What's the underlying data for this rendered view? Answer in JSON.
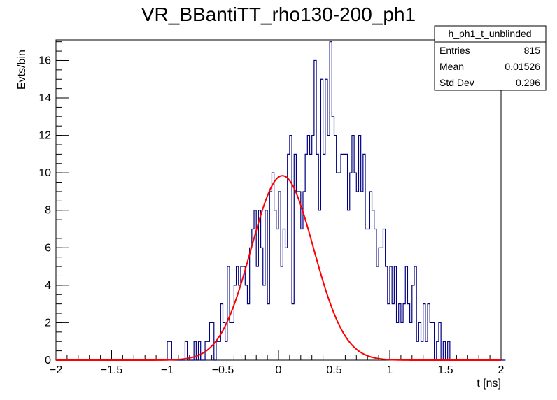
{
  "chart_data": {
    "type": "histogram",
    "title": "VR_BBantiTT_rho130-200_ph1",
    "xlabel": "t [ns]",
    "ylabel": "Evts/bin",
    "xlim": [
      -2,
      2
    ],
    "ylim": [
      0,
      17.1
    ],
    "x_ticks": [
      -2,
      -1.5,
      -1,
      -0.5,
      0,
      0.5,
      1,
      1.5,
      2
    ],
    "x_tick_labels": [
      "−2",
      "−1.5",
      "−1",
      "−0.5",
      "0",
      "0.5",
      "1",
      "1.5",
      "2"
    ],
    "y_ticks": [
      0,
      2,
      4,
      6,
      8,
      10,
      12,
      14,
      16
    ],
    "y_tick_labels": [
      "0",
      "2",
      "4",
      "6",
      "8",
      "10",
      "12",
      "14",
      "16"
    ],
    "bins": {
      "start": -2.0,
      "width": 0.02,
      "counts": [
        0,
        0,
        0,
        0,
        0,
        0,
        0,
        0,
        0,
        0,
        0,
        0,
        0,
        0,
        0,
        0,
        0,
        0,
        0,
        0,
        0,
        0,
        0,
        0,
        0,
        0,
        0,
        0,
        0,
        0,
        0,
        0,
        0,
        0,
        0,
        0,
        0,
        0,
        0,
        0,
        0,
        0,
        0,
        0,
        0,
        0,
        0,
        0,
        0,
        0,
        1,
        1,
        0,
        0,
        0,
        0,
        0,
        0,
        1,
        0,
        0,
        0,
        1,
        0,
        1,
        0,
        0,
        1,
        1,
        2,
        2,
        0,
        1,
        1,
        3,
        2,
        1,
        5,
        2,
        2,
        4,
        5,
        4,
        5,
        5,
        4,
        3,
        6,
        7,
        8,
        5,
        8,
        6,
        4,
        8,
        3,
        9,
        10,
        8,
        7,
        9,
        5,
        7,
        6,
        11,
        12,
        3,
        11,
        9,
        9,
        7,
        9,
        11,
        12,
        11,
        12,
        16,
        11,
        8,
        15,
        11,
        15,
        12,
        17,
        13,
        12,
        10,
        10,
        11,
        11,
        11,
        8,
        10,
        12,
        10,
        9,
        12,
        9,
        11,
        7,
        7,
        9,
        8,
        7,
        5,
        6,
        6,
        7,
        5,
        3,
        5,
        3,
        5,
        2,
        3,
        2,
        3,
        5,
        3,
        2,
        4,
        5,
        1,
        2,
        1,
        3,
        1,
        3,
        2,
        2,
        0,
        1,
        2,
        0,
        1,
        0,
        1,
        0,
        0,
        0,
        0,
        0,
        0,
        0,
        0,
        0,
        0,
        0,
        0,
        0,
        0,
        0,
        0,
        0,
        0,
        0,
        0,
        0,
        0,
        0,
        0,
        0
      ]
    },
    "series": [
      {
        "name": "h_ph1_t_unblinded",
        "color": "#000080"
      },
      {
        "kind": "gaussian_fit",
        "color": "#ff0000",
        "amplitude": 9.85,
        "mean": 0.035,
        "sigma": 0.28
      }
    ],
    "legend_placement": "top-right",
    "stats_box": {
      "title": "h_ph1_t_unblinded",
      "rows": [
        {
          "label": "Entries",
          "value": "815"
        },
        {
          "label": "Mean",
          "value": "0.01526"
        },
        {
          "label": "Std Dev",
          "value": "0.296"
        }
      ]
    },
    "grid": false
  }
}
